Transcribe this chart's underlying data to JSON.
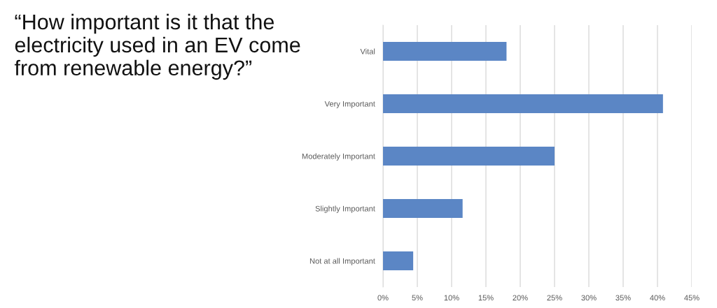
{
  "chart_data": {
    "type": "bar",
    "orientation": "horizontal",
    "title": "“How important is it that the electricity used in an EV come from renewable energy?”",
    "categories": [
      "Vital",
      "Very Important",
      "Moderately Important",
      "Slightly Important",
      "Not at all Important"
    ],
    "values": [
      18,
      40.8,
      25,
      11.6,
      4.4
    ],
    "color": "#5b86c5",
    "xlim": [
      0,
      45
    ],
    "xticks": [
      {
        "value": 0,
        "label": "0%"
      },
      {
        "value": 5,
        "label": "5%"
      },
      {
        "value": 10,
        "label": "10%"
      },
      {
        "value": 15,
        "label": "15%"
      },
      {
        "value": 20,
        "label": "20%"
      },
      {
        "value": 25,
        "label": "25%"
      },
      {
        "value": 30,
        "label": "30%"
      },
      {
        "value": 35,
        "label": "35%"
      },
      {
        "value": 40,
        "label": "40%"
      },
      {
        "value": 45,
        "label": "45%"
      }
    ],
    "grid": "x",
    "legend": false
  }
}
